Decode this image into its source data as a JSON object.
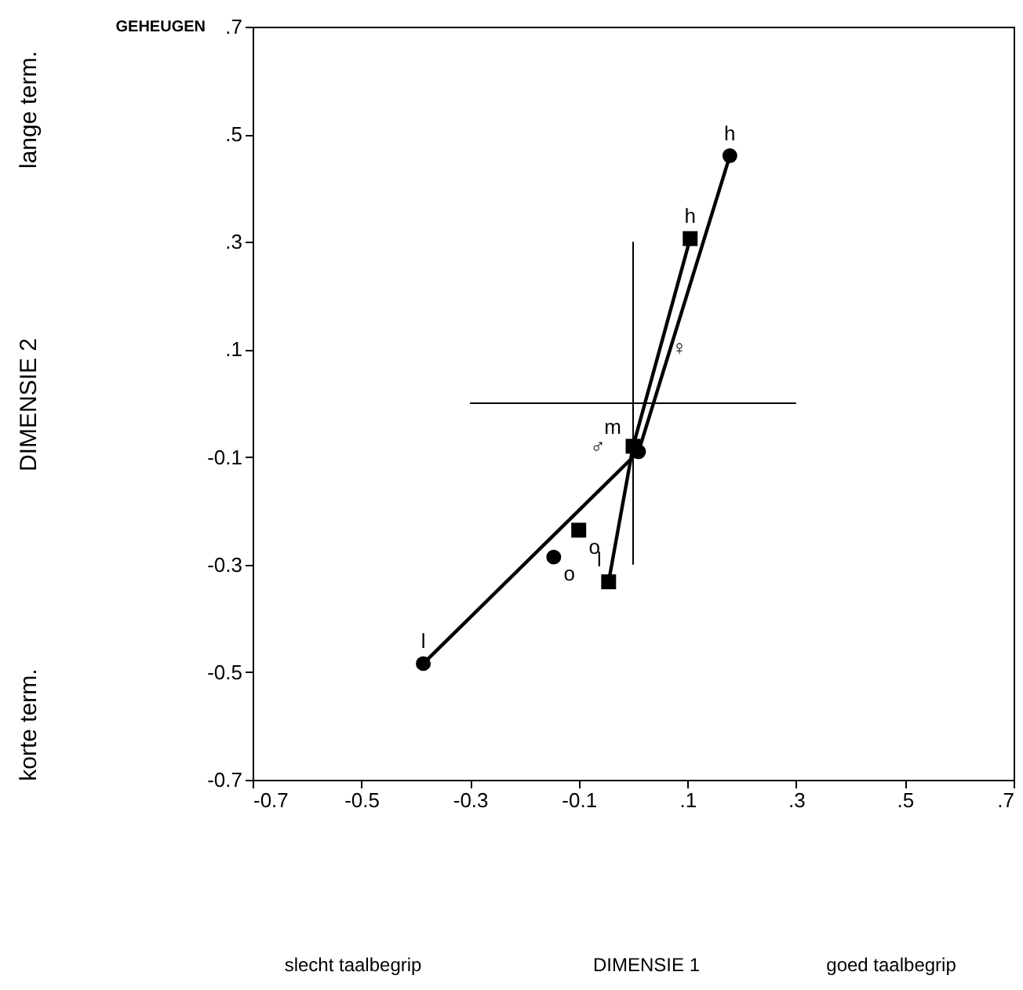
{
  "chart_data": {
    "type": "line",
    "xlim": [
      -0.7,
      0.7
    ],
    "ylim": [
      -0.7,
      0.7
    ],
    "xticks": [
      {
        "value": -0.7,
        "label": "-0.7"
      },
      {
        "value": -0.5,
        "label": "-0.5"
      },
      {
        "value": -0.3,
        "label": "-0.3"
      },
      {
        "value": -0.1,
        "label": "-0.1"
      },
      {
        "value": 0.1,
        "label": ".1"
      },
      {
        "value": 0.3,
        "label": ".3"
      },
      {
        "value": 0.5,
        "label": ".5"
      },
      {
        "value": 0.7,
        "label": ".7"
      }
    ],
    "yticks": [
      {
        "value": -0.7,
        "label": "-0.7"
      },
      {
        "value": -0.5,
        "label": "-0.5"
      },
      {
        "value": -0.3,
        "label": "-0.3"
      },
      {
        "value": -0.1,
        "label": "-0.1"
      },
      {
        "value": 0.1,
        "label": ".1"
      },
      {
        "value": 0.3,
        "label": ".3"
      },
      {
        "value": 0.5,
        "label": ".5"
      },
      {
        "value": 0.7,
        "label": ".7"
      }
    ],
    "grid": false,
    "series": [
      {
        "type": "line",
        "color": "#000000",
        "marker": "none",
        "x": [
          -0.3,
          0.3
        ],
        "values": [
          0,
          0
        ]
      },
      {
        "type": "line",
        "color": "#000000",
        "marker": "none",
        "x": [
          0,
          0
        ],
        "values": [
          0.3,
          -0.3
        ]
      },
      {
        "color": "#000000",
        "marker": "circle",
        "x": [
          -0.386,
          0.01,
          0.178
        ],
        "values": [
          -0.484,
          -0.09,
          0.46
        ]
      },
      {
        "color": "#000000",
        "marker": "square",
        "x": [
          -0.045,
          0.0,
          0.105
        ],
        "values": [
          -0.332,
          -0.08,
          0.306
        ]
      },
      {
        "type": "scatter",
        "color": "#000000",
        "marker": "circle",
        "x": [
          -0.146
        ],
        "values": [
          -0.286
        ]
      },
      {
        "type": "scatter",
        "color": "#000000",
        "marker": "square",
        "x": [
          -0.1
        ],
        "values": [
          -0.236
        ]
      }
    ],
    "annotations": [
      "GEHEUGEN",
      "lange term.",
      "DIMENSIE 2",
      "korte term.",
      "slecht taalbegrip",
      "DIMENSIE 1",
      "goed taalbegrip",
      "♂",
      "♀",
      {
        "text": "h",
        "x": 0.178,
        "y": 0.46
      },
      {
        "text": "h",
        "x": 0.105,
        "y": 0.306
      },
      {
        "text": "m",
        "x": 0.0,
        "y": -0.08
      },
      {
        "text": "l",
        "x": -0.386,
        "y": -0.484
      },
      {
        "text": "l",
        "x": -0.045,
        "y": -0.332
      },
      {
        "text": "o",
        "x": -0.1,
        "y": -0.236
      },
      {
        "text": "o",
        "x": -0.146,
        "y": -0.286
      }
    ]
  }
}
